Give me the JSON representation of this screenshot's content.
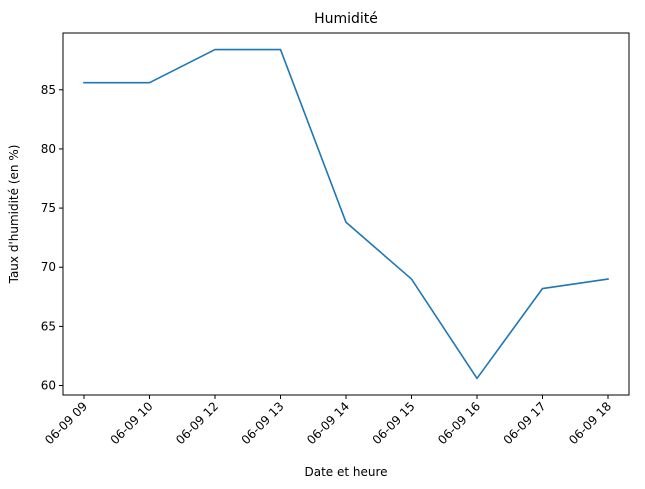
{
  "chart_data": {
    "type": "line",
    "title": "Humidité",
    "xlabel": "Date et heure",
    "ylabel": "Taux d'humidité (en %)",
    "categories": [
      "06-09 09",
      "06-09 10",
      "06-09 12",
      "06-09 13",
      "06-09 14",
      "06-09 15",
      "06-09 16",
      "06-09 17",
      "06-09 18"
    ],
    "series": [
      {
        "values": [
          85.6,
          85.6,
          88.4,
          88.4,
          73.8,
          69.0,
          60.6,
          68.2,
          69.0
        ],
        "color": "#1f77b4"
      }
    ],
    "ylim": [
      59.2,
      89.8
    ],
    "yticks": [
      60,
      65,
      70,
      75,
      80,
      85
    ],
    "grid": false,
    "legend": "none"
  }
}
